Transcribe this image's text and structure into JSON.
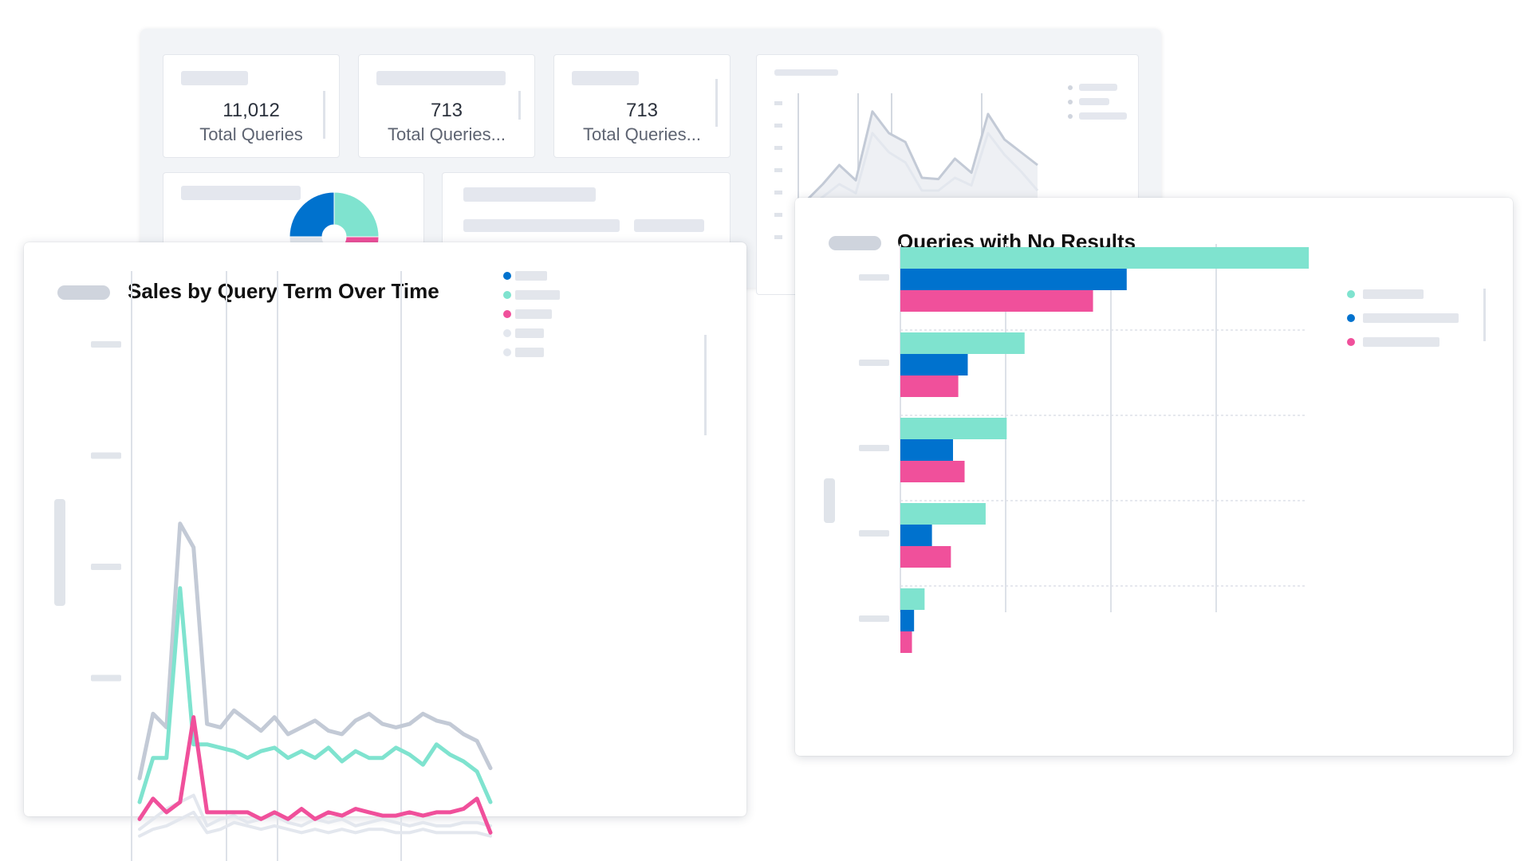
{
  "colors": {
    "teal": "#7fe3cf",
    "blue": "#0072ce",
    "pink": "#f0509b",
    "gray": "#c3cad6",
    "light_gray": "#e3e7ee"
  },
  "kpis": [
    {
      "value": "11,012",
      "label": "Total Queries"
    },
    {
      "value": "713",
      "label": "Total Queries..."
    },
    {
      "value": "713",
      "label": "Total Queries..."
    }
  ],
  "sales_card": {
    "title": "Sales by Query Term Over Time",
    "legend_colors": [
      "#0072ce",
      "#7fe3cf",
      "#f0509b",
      "#e3e7ee",
      "#e3e7ee"
    ]
  },
  "no_results_card": {
    "title": "Queries with No Results",
    "legend_colors": [
      "#7fe3cf",
      "#0072ce",
      "#f0509b"
    ]
  },
  "chart_data": [
    {
      "type": "line",
      "title": "Sales by Query Term Over Time",
      "ylim": [
        0,
        100
      ],
      "grid": true,
      "legend": "top-right",
      "x": [
        1,
        2,
        3,
        4,
        5,
        6,
        7,
        8,
        9,
        10,
        11,
        12,
        13,
        14,
        15,
        16,
        17,
        18,
        19,
        20,
        21,
        22,
        23,
        24,
        25,
        26,
        27
      ],
      "series": [
        {
          "color": "#c3cad6",
          "values": [
            22,
            41,
            37,
            97,
            90,
            38,
            37,
            42,
            39,
            36,
            40,
            35,
            37,
            39,
            36,
            35,
            39,
            41,
            38,
            37,
            38,
            41,
            39,
            38,
            35,
            33,
            25
          ]
        },
        {
          "color": "#7fe3cf",
          "values": [
            15,
            28,
            28,
            78,
            32,
            32,
            31,
            30,
            28,
            30,
            31,
            28,
            30,
            28,
            31,
            27,
            30,
            28,
            28,
            31,
            29,
            26,
            32,
            29,
            27,
            24,
            15
          ]
        },
        {
          "color": "#f0509b",
          "values": [
            10,
            16,
            12,
            15,
            40,
            12,
            12,
            12,
            12,
            10,
            12,
            10,
            13,
            10,
            12,
            11,
            13,
            12,
            11,
            11,
            12,
            11,
            12,
            12,
            13,
            16,
            6
          ]
        },
        {
          "color": "#e3e7ee",
          "values": [
            7,
            10,
            13,
            15,
            17,
            8,
            10,
            11,
            9,
            10,
            11,
            9,
            8,
            10,
            9,
            10,
            8,
            9,
            10,
            9,
            8,
            9,
            8,
            8,
            9,
            9,
            8
          ]
        },
        {
          "color": "#e3e7ee",
          "values": [
            5,
            7,
            8,
            10,
            12,
            6,
            7,
            9,
            8,
            7,
            8,
            7,
            6,
            7,
            6,
            7,
            6,
            7,
            7,
            6,
            6,
            7,
            6,
            6,
            6,
            6,
            5
          ]
        }
      ]
    },
    {
      "type": "bar",
      "title": "Queries with No Results",
      "orientation": "horizontal",
      "xlim": [
        0,
        4
      ],
      "grid": true,
      "legend": "top-right",
      "groups": 5,
      "series": [
        {
          "color": "#7fe3cf",
          "values": [
            3.88,
            1.18,
            1.01,
            0.81,
            0.23
          ]
        },
        {
          "color": "#0072ce",
          "values": [
            2.15,
            0.64,
            0.5,
            0.3,
            0.13
          ]
        },
        {
          "color": "#f0509b",
          "values": [
            1.83,
            0.55,
            0.61,
            0.48,
            0.11
          ]
        }
      ]
    },
    {
      "type": "area",
      "title": "",
      "ylim": [
        0,
        100
      ],
      "grid": true,
      "legend": "top-right",
      "series": [
        {
          "color": "#c3cad6",
          "values": [
            22,
            35,
            50,
            38,
            92,
            75,
            68,
            40,
            39,
            55,
            44,
            90,
            70,
            60,
            50
          ]
        },
        {
          "color": "#e3e7ee",
          "values": [
            15,
            25,
            35,
            28,
            75,
            60,
            52,
            30,
            30,
            40,
            34,
            75,
            58,
            45,
            30
          ]
        }
      ]
    },
    {
      "type": "pie",
      "title": "",
      "slices": [
        {
          "color": "#7fe3cf",
          "value": 25
        },
        {
          "color": "#f0509b",
          "value": 25
        },
        {
          "color": "#e3e7ee",
          "value": 25
        },
        {
          "color": "#0072ce",
          "value": 25
        }
      ]
    }
  ]
}
